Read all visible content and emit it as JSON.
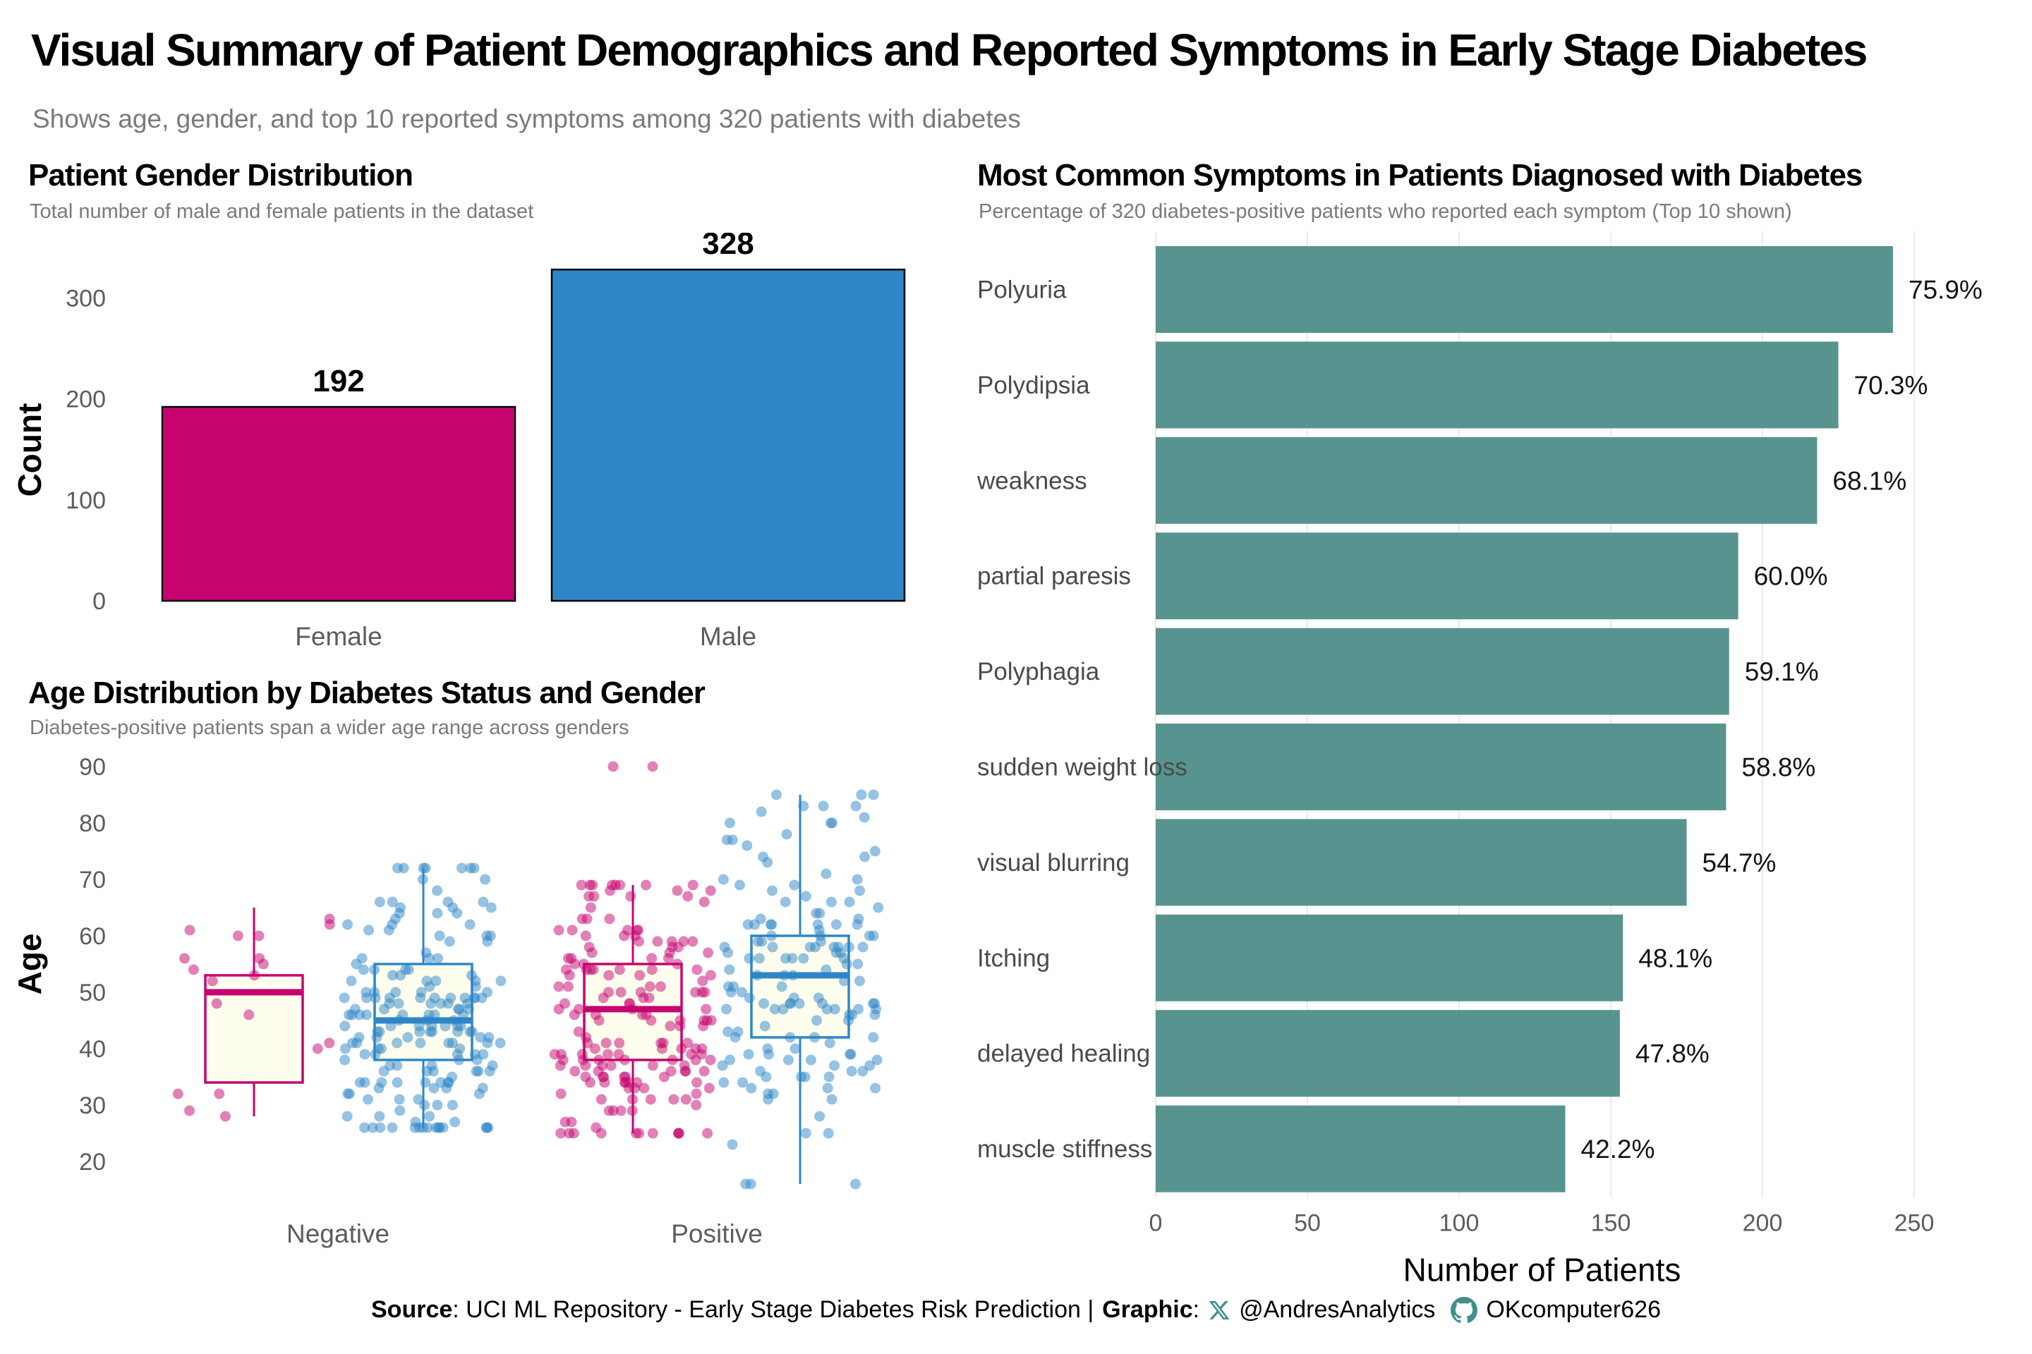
{
  "header": {
    "title": "Visual Summary of Patient Demographics and Reported Symptoms in Early Stage Diabetes",
    "subtitle": "Shows age, gender, and top 10 reported symptoms among 320 patients with diabetes"
  },
  "colors": {
    "female": "#C6046F",
    "male": "#2E86C8",
    "teal": "#57948F",
    "box_fill": "#FEFEEF",
    "grid": "#EAEAEA",
    "axis_text": "#5c5c5c",
    "label_text": "#4a4a4a",
    "subtitle_text": "#7a7a7a",
    "icon_teal": "#418F8B"
  },
  "chart_data": [
    {
      "id": "gender",
      "type": "bar",
      "title": "Patient Gender Distribution",
      "subtitle": "Total number of male and female patients in the dataset",
      "ylabel": "Count",
      "yticks": [
        0,
        100,
        200,
        300
      ],
      "ylim": [
        0,
        356
      ],
      "categories": [
        "Female",
        "Male"
      ],
      "values": [
        192,
        328
      ],
      "bar_colors": [
        "#C6046F",
        "#2E86C8"
      ],
      "grid": false,
      "legend": "none"
    },
    {
      "id": "age_box",
      "type": "boxplot-jitter",
      "title": "Age Distribution by Diabetes Status and Gender",
      "subtitle": "Diabetes-positive patients span a wider age range across genders",
      "ylabel": "Age",
      "yticks": [
        20,
        30,
        40,
        50,
        60,
        70,
        80,
        90
      ],
      "ylim": [
        14,
        93
      ],
      "categories": [
        "Negative",
        "Positive"
      ],
      "series": [
        {
          "status": "Negative",
          "gender": "Female",
          "color": "#C6046F",
          "n": 19,
          "stats": {
            "min": 28,
            "q1": 34,
            "median": 50,
            "q3": 53,
            "max": 65
          },
          "outliers": []
        },
        {
          "status": "Negative",
          "gender": "Male",
          "color": "#2E86C8",
          "n": 181,
          "stats": {
            "min": 26,
            "q1": 38,
            "median": 45,
            "q3": 55,
            "max": 72
          },
          "outliers": []
        },
        {
          "status": "Positive",
          "gender": "Female",
          "color": "#C6046F",
          "n": 173,
          "stats": {
            "min": 25,
            "q1": 38,
            "median": 47,
            "q3": 55,
            "max": 69
          },
          "outliers": [
            90,
            90
          ]
        },
        {
          "status": "Positive",
          "gender": "Male",
          "color": "#2E86C8",
          "n": 147,
          "stats": {
            "min": 16,
            "q1": 42,
            "median": 53,
            "q3": 60,
            "max": 85
          },
          "outliers": []
        }
      ],
      "grid": false,
      "legend": "none"
    },
    {
      "id": "symptoms",
      "type": "bar-horizontal",
      "title": "Most Common Symptoms in Patients Diagnosed with Diabetes",
      "subtitle": "Percentage of 320 diabetes-positive patients who reported each symptom (Top 10 shown)",
      "xlabel": "Number of Patients",
      "xticks": [
        0,
        50,
        100,
        150,
        200,
        250
      ],
      "xlim": [
        0,
        265
      ],
      "bar_color": "#57948F",
      "grid": true,
      "legend": "none",
      "items": [
        {
          "label": "Polyuria",
          "patients": 243,
          "pct": "75.9%"
        },
        {
          "label": "Polydipsia",
          "patients": 225,
          "pct": "70.3%"
        },
        {
          "label": "weakness",
          "patients": 218,
          "pct": "68.1%"
        },
        {
          "label": "partial paresis",
          "patients": 192,
          "pct": "60.0%"
        },
        {
          "label": "Polyphagia",
          "patients": 189,
          "pct": "59.1%"
        },
        {
          "label": "sudden weight loss",
          "patients": 188,
          "pct": "58.8%"
        },
        {
          "label": "visual blurring",
          "patients": 175,
          "pct": "54.7%"
        },
        {
          "label": "Itching",
          "patients": 154,
          "pct": "48.1%"
        },
        {
          "label": "delayed healing",
          "patients": 153,
          "pct": "47.8%"
        },
        {
          "label": "muscle stiffness",
          "patients": 135,
          "pct": "42.2%"
        }
      ]
    }
  ],
  "footer": {
    "source_label": "Source",
    "source_text": ": UCI ML Repository - Early Stage Diabetes Risk Prediction |",
    "graphic_label": "Graphic",
    "graphic_colon": ":",
    "x_handle": "@AndresAnalytics",
    "github_handle": "OKcomputer626"
  }
}
